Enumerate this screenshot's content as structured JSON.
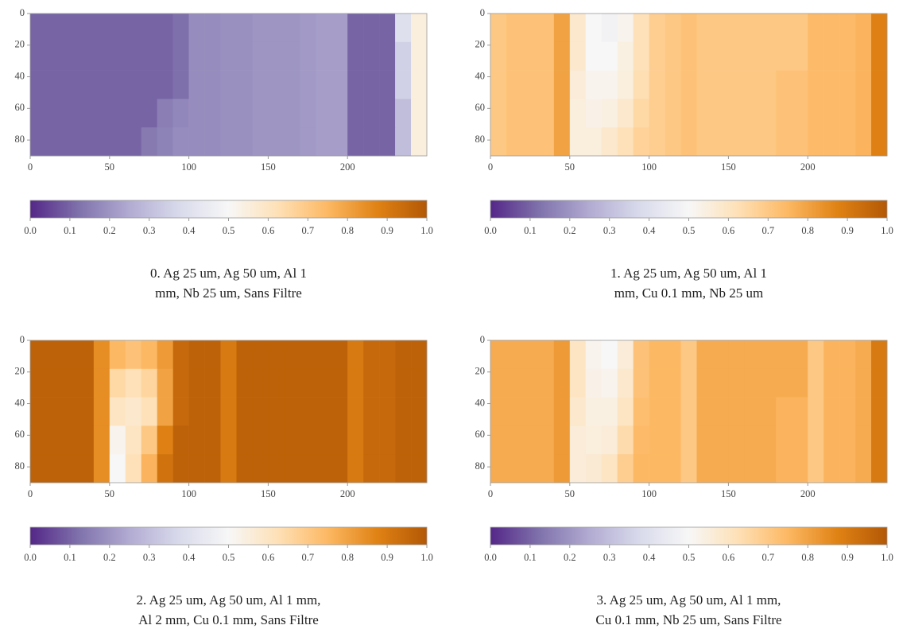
{
  "chart_data": [
    {
      "type": "heatmap",
      "title": [
        "0. Ag 25 um, Ag 50 um, Al 1",
        "mm, Nb 25 um, Sans Filtre"
      ],
      "xlim": [
        0,
        250
      ],
      "ylim": [
        0,
        90
      ],
      "xticks": [
        0,
        50,
        100,
        150,
        200
      ],
      "yticks": [
        0,
        20,
        40,
        60,
        80
      ],
      "xbins": [
        0,
        10,
        20,
        30,
        40,
        50,
        60,
        70,
        80,
        90,
        100,
        110,
        120,
        130,
        140,
        150,
        160,
        170,
        180,
        190,
        200,
        210,
        220,
        230,
        240,
        250
      ],
      "ybins": [
        0,
        18,
        36,
        54,
        72,
        90
      ],
      "colormap": [
        "#542788",
        "#8073ac",
        "#b2abd2",
        "#d8daeb",
        "#f7f7f7",
        "#fee0b6",
        "#fdb863",
        "#e08214",
        "#b35806"
      ],
      "clim": [
        0,
        1
      ],
      "cticks": [
        {
          "value": 0,
          "label": "0.0"
        },
        0.1,
        0.2,
        0.3,
        0.4,
        0.5,
        0.6,
        0.7,
        0.8,
        0.9,
        {
          "value": 1,
          "label": "1.0"
        }
      ],
      "values": [
        [
          0.1,
          0.1,
          0.1,
          0.1,
          0.1,
          0.1,
          0.1,
          0.1,
          0.1,
          0.12,
          0.18,
          0.18,
          0.19,
          0.19,
          0.2,
          0.2,
          0.2,
          0.21,
          0.22,
          0.22,
          0.1,
          0.1,
          0.1,
          0.4,
          0.55
        ],
        [
          0.1,
          0.1,
          0.1,
          0.1,
          0.1,
          0.1,
          0.1,
          0.1,
          0.1,
          0.12,
          0.18,
          0.18,
          0.19,
          0.19,
          0.2,
          0.2,
          0.2,
          0.21,
          0.22,
          0.22,
          0.1,
          0.1,
          0.1,
          0.35,
          0.55
        ],
        [
          0.1,
          0.1,
          0.1,
          0.1,
          0.1,
          0.1,
          0.1,
          0.1,
          0.1,
          0.12,
          0.18,
          0.18,
          0.19,
          0.19,
          0.2,
          0.2,
          0.2,
          0.21,
          0.22,
          0.22,
          0.1,
          0.1,
          0.1,
          0.35,
          0.55
        ],
        [
          0.1,
          0.1,
          0.1,
          0.1,
          0.1,
          0.1,
          0.1,
          0.1,
          0.15,
          0.17,
          0.18,
          0.18,
          0.19,
          0.19,
          0.2,
          0.2,
          0.2,
          0.21,
          0.22,
          0.22,
          0.1,
          0.1,
          0.1,
          0.3,
          0.55
        ],
        [
          0.1,
          0.1,
          0.1,
          0.1,
          0.1,
          0.1,
          0.1,
          0.14,
          0.16,
          0.18,
          0.18,
          0.18,
          0.19,
          0.19,
          0.2,
          0.2,
          0.2,
          0.21,
          0.22,
          0.22,
          0.1,
          0.1,
          0.1,
          0.3,
          0.55
        ]
      ]
    },
    {
      "type": "heatmap",
      "title": [
        "1. Ag 25 um, Ag 50 um, Al 1",
        "mm, Cu 0.1 mm, Nb 25 um"
      ],
      "xlim": [
        0,
        250
      ],
      "ylim": [
        0,
        90
      ],
      "xticks": [
        0,
        50,
        100,
        150,
        200
      ],
      "yticks": [
        0,
        20,
        40,
        60,
        80
      ],
      "xbins": [
        0,
        10,
        20,
        30,
        40,
        50,
        60,
        70,
        80,
        90,
        100,
        110,
        120,
        130,
        140,
        150,
        160,
        170,
        180,
        190,
        200,
        210,
        220,
        230,
        240,
        250
      ],
      "ybins": [
        0,
        18,
        36,
        54,
        72,
        90
      ],
      "colormap": [
        "#542788",
        "#8073ac",
        "#b2abd2",
        "#d8daeb",
        "#f7f7f7",
        "#fee0b6",
        "#fdb863",
        "#e08214",
        "#b35806"
      ],
      "clim": [
        0,
        1
      ],
      "cticks": [
        {
          "value": 0,
          "label": "0.0"
        },
        0.1,
        0.2,
        0.3,
        0.4,
        0.5,
        0.6,
        0.7,
        0.8,
        0.9,
        {
          "value": 1,
          "label": "1.0"
        }
      ],
      "values": [
        [
          0.7,
          0.72,
          0.72,
          0.72,
          0.8,
          0.58,
          0.5,
          0.48,
          0.52,
          0.62,
          0.68,
          0.7,
          0.72,
          0.7,
          0.7,
          0.7,
          0.7,
          0.7,
          0.7,
          0.7,
          0.74,
          0.74,
          0.74,
          0.76,
          0.88
        ],
        [
          0.7,
          0.72,
          0.72,
          0.72,
          0.8,
          0.58,
          0.5,
          0.5,
          0.54,
          0.62,
          0.68,
          0.7,
          0.72,
          0.7,
          0.7,
          0.7,
          0.7,
          0.7,
          0.7,
          0.7,
          0.74,
          0.74,
          0.74,
          0.76,
          0.88
        ],
        [
          0.7,
          0.72,
          0.72,
          0.72,
          0.8,
          0.56,
          0.52,
          0.52,
          0.55,
          0.63,
          0.68,
          0.7,
          0.72,
          0.7,
          0.7,
          0.7,
          0.7,
          0.7,
          0.72,
          0.72,
          0.74,
          0.74,
          0.74,
          0.76,
          0.88
        ],
        [
          0.7,
          0.72,
          0.72,
          0.72,
          0.8,
          0.55,
          0.53,
          0.54,
          0.58,
          0.65,
          0.68,
          0.7,
          0.72,
          0.7,
          0.7,
          0.7,
          0.7,
          0.7,
          0.72,
          0.72,
          0.74,
          0.74,
          0.74,
          0.76,
          0.88
        ],
        [
          0.7,
          0.72,
          0.72,
          0.72,
          0.8,
          0.55,
          0.55,
          0.58,
          0.62,
          0.67,
          0.68,
          0.7,
          0.72,
          0.7,
          0.7,
          0.7,
          0.7,
          0.7,
          0.72,
          0.72,
          0.74,
          0.74,
          0.74,
          0.76,
          0.88
        ]
      ]
    },
    {
      "type": "heatmap",
      "title": [
        "2. Ag 25 um, Ag 50 um, Al 1 mm,",
        "Al 2 mm, Cu 0.1 mm, Sans Filtre"
      ],
      "xlim": [
        0,
        250
      ],
      "ylim": [
        0,
        90
      ],
      "xticks": [
        0,
        50,
        100,
        150,
        200
      ],
      "yticks": [
        0,
        20,
        40,
        60,
        80
      ],
      "xbins": [
        0,
        10,
        20,
        30,
        40,
        50,
        60,
        70,
        80,
        90,
        100,
        110,
        120,
        130,
        140,
        150,
        160,
        170,
        180,
        190,
        200,
        210,
        220,
        230,
        240,
        250
      ],
      "ybins": [
        0,
        18,
        36,
        54,
        72,
        90
      ],
      "colormap": [
        "#542788",
        "#8073ac",
        "#b2abd2",
        "#d8daeb",
        "#f7f7f7",
        "#fee0b6",
        "#fdb863",
        "#e08214",
        "#b35806"
      ],
      "clim": [
        0,
        1
      ],
      "cticks": [
        {
          "value": 0,
          "label": "0.0"
        },
        0.1,
        0.2,
        0.3,
        0.4,
        0.5,
        0.6,
        0.7,
        0.8,
        0.9,
        {
          "value": 1,
          "label": "1.0"
        }
      ],
      "values": [
        [
          0.97,
          0.97,
          0.97,
          0.97,
          0.85,
          0.75,
          0.72,
          0.75,
          0.82,
          0.95,
          0.97,
          0.97,
          0.9,
          0.97,
          0.97,
          0.97,
          0.97,
          0.97,
          0.97,
          0.97,
          0.9,
          0.95,
          0.95,
          0.97,
          0.97
        ],
        [
          0.97,
          0.97,
          0.97,
          0.97,
          0.85,
          0.65,
          0.62,
          0.66,
          0.8,
          0.95,
          0.97,
          0.97,
          0.9,
          0.97,
          0.97,
          0.97,
          0.97,
          0.97,
          0.97,
          0.97,
          0.9,
          0.95,
          0.95,
          0.97,
          0.97
        ],
        [
          0.97,
          0.97,
          0.97,
          0.97,
          0.85,
          0.6,
          0.58,
          0.62,
          0.8,
          0.95,
          0.97,
          0.97,
          0.9,
          0.97,
          0.97,
          0.97,
          0.97,
          0.97,
          0.97,
          0.97,
          0.9,
          0.95,
          0.95,
          0.97,
          0.97
        ],
        [
          0.97,
          0.97,
          0.97,
          0.97,
          0.85,
          0.52,
          0.6,
          0.7,
          0.88,
          0.97,
          0.97,
          0.97,
          0.9,
          0.97,
          0.97,
          0.97,
          0.97,
          0.97,
          0.97,
          0.97,
          0.9,
          0.95,
          0.95,
          0.97,
          0.97
        ],
        [
          0.97,
          0.97,
          0.97,
          0.97,
          0.85,
          0.5,
          0.62,
          0.76,
          0.92,
          0.97,
          0.97,
          0.97,
          0.9,
          0.97,
          0.97,
          0.97,
          0.97,
          0.97,
          0.97,
          0.97,
          0.9,
          0.95,
          0.95,
          0.97,
          0.97
        ]
      ]
    },
    {
      "type": "heatmap",
      "title": [
        "3. Ag 25 um, Ag 50 um, Al 1 mm,",
        "Cu 0.1 mm, Nb 25 um, Sans Filtre"
      ],
      "xlim": [
        0,
        250
      ],
      "ylim": [
        0,
        90
      ],
      "xticks": [
        0,
        50,
        100,
        150,
        200
      ],
      "yticks": [
        0,
        20,
        40,
        60,
        80
      ],
      "xbins": [
        0,
        10,
        20,
        30,
        40,
        50,
        60,
        70,
        80,
        90,
        100,
        110,
        120,
        130,
        140,
        150,
        160,
        170,
        180,
        190,
        200,
        210,
        220,
        230,
        240,
        250
      ],
      "ybins": [
        0,
        18,
        36,
        54,
        72,
        90
      ],
      "colormap": [
        "#542788",
        "#8073ac",
        "#b2abd2",
        "#d8daeb",
        "#f7f7f7",
        "#fee0b6",
        "#fdb863",
        "#e08214",
        "#b35806"
      ],
      "clim": [
        0,
        1
      ],
      "cticks": [
        {
          "value": 0,
          "label": "0.0"
        },
        0.1,
        0.2,
        0.3,
        0.4,
        0.5,
        0.6,
        0.7,
        0.8,
        0.9,
        {
          "value": 1,
          "label": "1.0"
        }
      ],
      "values": [
        [
          0.78,
          0.78,
          0.78,
          0.78,
          0.82,
          0.6,
          0.52,
          0.5,
          0.56,
          0.72,
          0.75,
          0.75,
          0.7,
          0.78,
          0.78,
          0.78,
          0.78,
          0.78,
          0.78,
          0.78,
          0.7,
          0.76,
          0.76,
          0.78,
          0.9
        ],
        [
          0.78,
          0.78,
          0.78,
          0.78,
          0.82,
          0.6,
          0.53,
          0.52,
          0.58,
          0.72,
          0.75,
          0.75,
          0.7,
          0.78,
          0.78,
          0.78,
          0.78,
          0.78,
          0.78,
          0.78,
          0.7,
          0.76,
          0.76,
          0.78,
          0.9
        ],
        [
          0.78,
          0.78,
          0.78,
          0.78,
          0.82,
          0.58,
          0.54,
          0.54,
          0.6,
          0.73,
          0.75,
          0.75,
          0.7,
          0.78,
          0.78,
          0.78,
          0.78,
          0.78,
          0.76,
          0.76,
          0.7,
          0.76,
          0.76,
          0.78,
          0.9
        ],
        [
          0.78,
          0.78,
          0.78,
          0.78,
          0.82,
          0.56,
          0.55,
          0.56,
          0.64,
          0.74,
          0.75,
          0.75,
          0.7,
          0.78,
          0.78,
          0.78,
          0.78,
          0.78,
          0.76,
          0.76,
          0.7,
          0.76,
          0.76,
          0.78,
          0.9
        ],
        [
          0.78,
          0.78,
          0.78,
          0.78,
          0.82,
          0.56,
          0.57,
          0.6,
          0.68,
          0.75,
          0.75,
          0.75,
          0.7,
          0.78,
          0.78,
          0.78,
          0.78,
          0.78,
          0.76,
          0.76,
          0.7,
          0.76,
          0.76,
          0.78,
          0.9
        ]
      ]
    }
  ]
}
